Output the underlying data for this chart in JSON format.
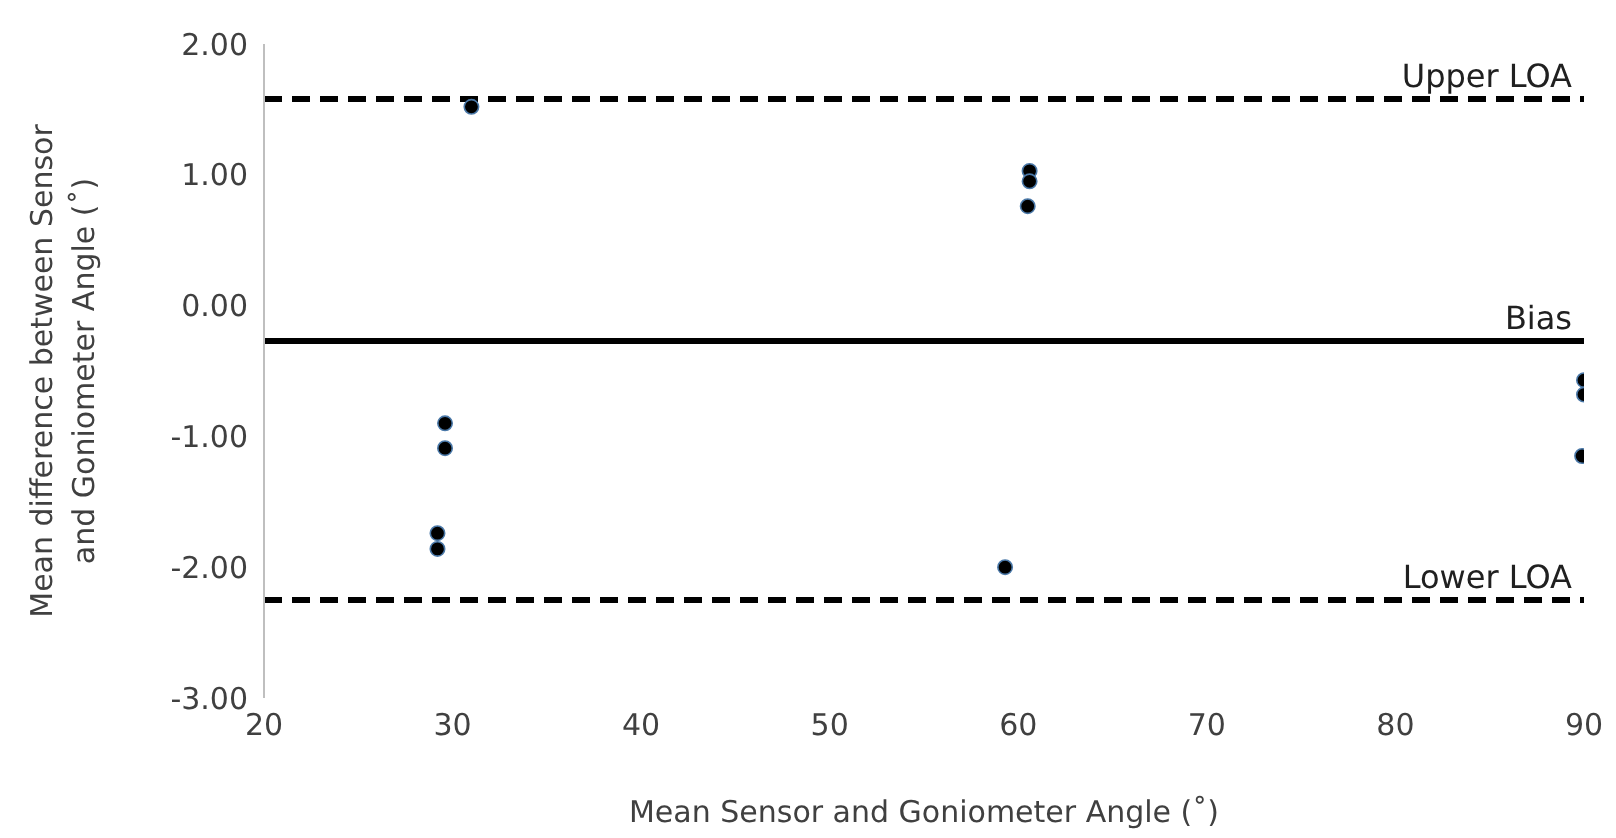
{
  "chart_data": {
    "type": "scatter",
    "xlabel": "Mean Sensor and Goniometer Angle (˚)",
    "ylabel": "Mean difference between Sensor and Goniometer Angle (˚)",
    "x": [
      31.0,
      29.6,
      29.6,
      29.2,
      29.2,
      60.6,
      60.6,
      60.5,
      59.3,
      90.0,
      90.0,
      89.9
    ],
    "series": [
      {
        "color": "#000000",
        "values": [
          1.52,
          -0.9,
          -1.09,
          -1.74,
          -1.86,
          1.03,
          0.95,
          0.76,
          -2.0,
          -0.57,
          -0.68,
          -1.15
        ]
      }
    ],
    "xlim": [
      20,
      90
    ],
    "xticks": [
      20,
      30,
      40,
      50,
      60,
      70,
      80,
      90
    ],
    "ylim": [
      -3,
      2
    ],
    "yticks": [
      {
        "value": -3,
        "label": "-3.00"
      },
      {
        "value": -2,
        "label": "-2.00"
      },
      {
        "value": -1,
        "label": "-1.00"
      },
      {
        "value": 0,
        "label": "0.00"
      },
      {
        "value": 1,
        "label": "1.00"
      },
      {
        "value": 2,
        "label": "2.00"
      }
    ],
    "ref_lines": [
      {
        "axis": "y",
        "value": 1.58,
        "label": "Upper LOA",
        "color": "#000000",
        "line_style": "dashed"
      },
      {
        "axis": "y",
        "value": -0.27,
        "label": "Bias",
        "color": "#000000",
        "line_style": "solid"
      },
      {
        "axis": "y",
        "value": -2.25,
        "label": "Lower LOA",
        "color": "#000000",
        "line_style": "dashed"
      }
    ],
    "marker": "circle",
    "grid": false
  }
}
